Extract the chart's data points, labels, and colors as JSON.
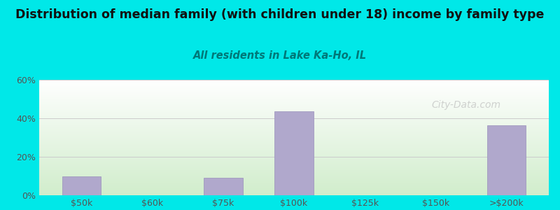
{
  "title": "Distribution of median family (with children under 18) income by family type",
  "subtitle": "All residents in Lake Ka-Ho, IL",
  "categories": [
    "$50k",
    "$60k",
    "$75k",
    "$100k",
    "$125k",
    "$150k",
    ">$200k"
  ],
  "values": [
    10.0,
    0.0,
    9.0,
    43.5,
    0.0,
    0.0,
    36.5
  ],
  "bar_color": "#b0a8cc",
  "bar_color_edge": "#9990bb",
  "background_outer": "#00e8e8",
  "plot_bg_top": "#ffffff",
  "plot_bg_bottom": "#cce8cc",
  "title_color": "#111111",
  "subtitle_color": "#007878",
  "tick_color": "#555555",
  "grid_color": "#cccccc",
  "ylim": [
    0,
    60
  ],
  "yticks": [
    0,
    20,
    40,
    60
  ],
  "title_fontsize": 12.5,
  "subtitle_fontsize": 10.5,
  "watermark_text": "City-Data.com",
  "watermark_color": "#bbbbbb"
}
